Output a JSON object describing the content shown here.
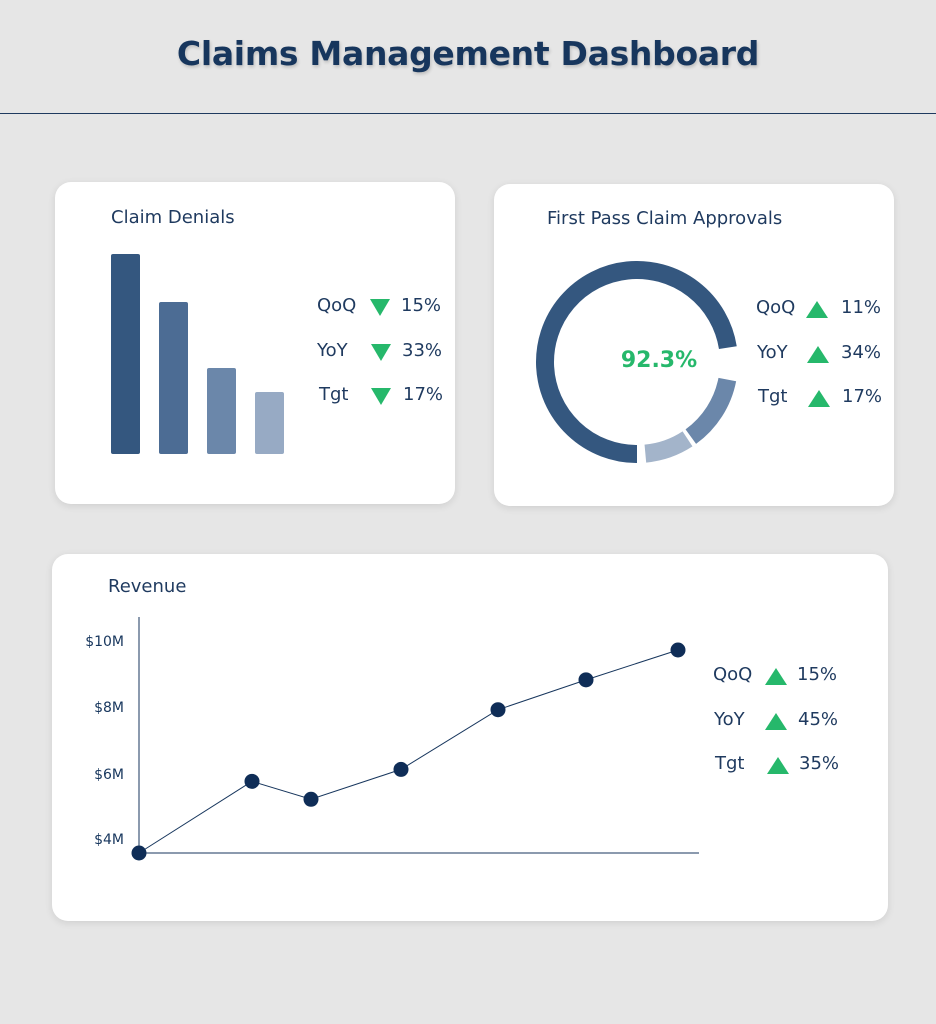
{
  "header": {
    "title": "Claims Management Dashboard"
  },
  "claim_denials": {
    "title": "Claim Denials",
    "bar_colors": [
      "#34577f",
      "#4c6c94",
      "#6b87aa",
      "#97aac4"
    ],
    "metrics": [
      {
        "label": "QoQ",
        "direction": "down",
        "value": "15%"
      },
      {
        "label": "YoY",
        "direction": "down",
        "value": "33%"
      },
      {
        "label": "Tgt",
        "direction": "down",
        "value": "17%"
      }
    ]
  },
  "first_pass": {
    "title": "First Pass Claim Approvals",
    "center_value": "92.3%",
    "metrics": [
      {
        "label": "QoQ",
        "direction": "up",
        "value": "11%"
      },
      {
        "label": "YoY",
        "direction": "up",
        "value": "34%"
      },
      {
        "label": "Tgt",
        "direction": "up",
        "value": "17%"
      }
    ]
  },
  "revenue": {
    "title": "Revenue",
    "metrics": [
      {
        "label": "QoQ",
        "direction": "up",
        "value": "15%"
      },
      {
        "label": "YoY",
        "direction": "up",
        "value": "45%"
      },
      {
        "label": "Tgt",
        "direction": "up",
        "value": "35%"
      }
    ]
  },
  "colors": {
    "navy": "#17365d",
    "accent_green": "#26b86b",
    "background": "#e6e6e6"
  },
  "chart_data": [
    {
      "type": "bar",
      "title": "Claim Denials",
      "categories": [
        "",
        "",
        "",
        ""
      ],
      "values": [
        100,
        76,
        43,
        31
      ],
      "ylim": [
        0,
        100
      ],
      "grid": false
    },
    {
      "type": "pie",
      "title": "First Pass Claim Approvals",
      "center_label": "92.3%",
      "values": [
        72.5,
        12.0,
        7.8
      ],
      "colors": [
        "#34577f",
        "#6b87aa",
        "#a3b4ca"
      ],
      "donut": true
    },
    {
      "type": "line",
      "title": "Revenue",
      "x": [
        1,
        2,
        3,
        4,
        5,
        6,
        7
      ],
      "series": [
        {
          "values": [
            4.0,
            6.4,
            5.8,
            6.8,
            8.8,
            9.8,
            10.8
          ]
        }
      ],
      "ylim": [
        4,
        10.8
      ],
      "yticks": [
        4,
        6,
        8,
        10
      ],
      "yticklabels": [
        "$4M",
        "$6M",
        "$8M",
        "$10M"
      ],
      "grid": false
    }
  ]
}
